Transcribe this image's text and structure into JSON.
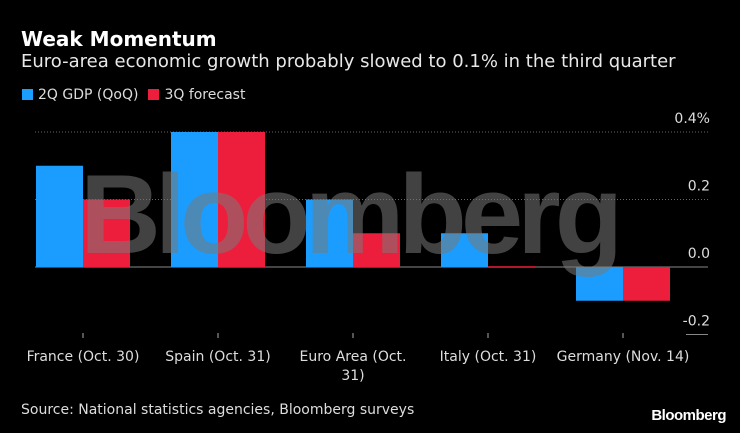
{
  "chart_data": {
    "type": "bar",
    "title": "Weak Momentum",
    "subtitle": "Euro-area economic growth probably slowed to 0.1% in the third quarter",
    "categories": [
      "France (Oct. 30)",
      "Spain (Oct. 31)",
      "Euro Area (Oct. 31)",
      "Italy (Oct. 31)",
      "Germany (Nov. 14)"
    ],
    "series": [
      {
        "name": "2Q GDP (QoQ)",
        "color": "#1a9dff",
        "values": [
          0.3,
          0.4,
          0.2,
          0.1,
          -0.1
        ]
      },
      {
        "name": "3Q forecast",
        "color": "#ed1e3c",
        "values": [
          0.2,
          0.4,
          0.1,
          0.0,
          -0.1
        ]
      }
    ],
    "ylim": [
      -0.2,
      0.4
    ],
    "yticks": [
      0.4,
      0.2,
      0.0,
      -0.2
    ],
    "ytick_labels": [
      "0.4%",
      "0.2",
      "0.0",
      "-0.2"
    ],
    "ylabel": "",
    "xlabel": "",
    "grid": true,
    "legend": "top-left",
    "source": "Source: National statistics agencies, Bloomberg surveys",
    "brand": "Bloomberg",
    "watermark": "Bloomberg"
  }
}
